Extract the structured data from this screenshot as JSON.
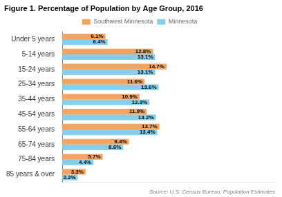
{
  "chart_data": {
    "type": "bar",
    "orientation": "horizontal",
    "title": "Figure 1. Percentage of Population by Age Group, 2016",
    "source": "Source: U.S. Census Bureau, Population Estimates",
    "categories": [
      "Under 5 years",
      "5-14 years",
      "15-24 years",
      "25-34 years",
      "35-44 years",
      "45-54 years",
      "55-64 years",
      "65-74 years",
      "75-84 years",
      "85 years & over"
    ],
    "series": [
      {
        "name": "Southwest Minnesota",
        "color": "#F4A460",
        "values": [
          6.1,
          12.8,
          14.7,
          11.6,
          10.9,
          11.9,
          13.7,
          9.4,
          5.7,
          3.3
        ],
        "value_labels": [
          "6.1%",
          "12.8%",
          "14.7%",
          "11.6%",
          "10.9%",
          "11.9%",
          "13.7%",
          "9.4%",
          "5.7%",
          "3.3%"
        ]
      },
      {
        "name": "Minnesota",
        "color": "#87CEEB",
        "values": [
          6.4,
          13.1,
          13.1,
          13.6,
          12.3,
          13.2,
          13.4,
          8.6,
          4.4,
          2.2
        ],
        "value_labels": [
          "6.4%",
          "13.1%",
          "13.1%",
          "13.6%",
          "12.3%",
          "13.2%",
          "13.4%",
          "8.6%",
          "4.4%",
          "2.2%"
        ]
      }
    ],
    "xlim": [
      0,
      30
    ],
    "xticks": [],
    "grid": false,
    "legend": "top",
    "data_labels": true,
    "tick_labels": "y"
  }
}
